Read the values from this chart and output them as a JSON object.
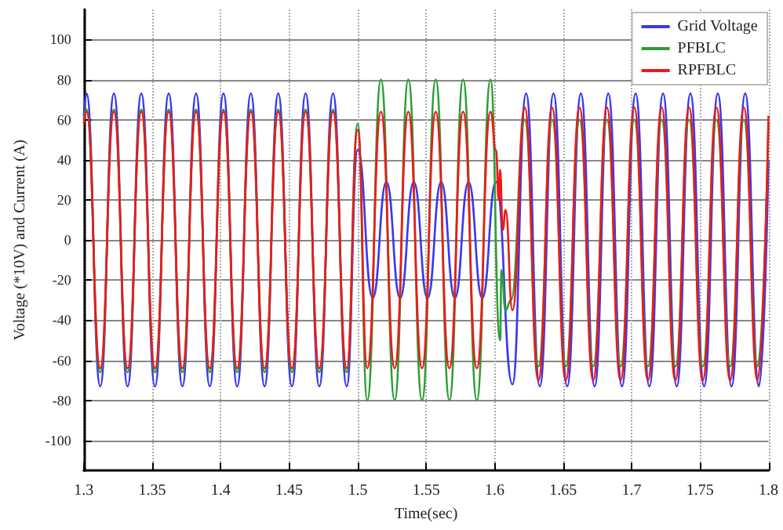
{
  "chart_data": {
    "type": "line",
    "xlabel": "Time(sec)",
    "ylabel": "Voltage (*10V) and Current (A)",
    "xlim": [
      1.3,
      1.8
    ],
    "xticks": [
      1.3,
      1.35,
      1.4,
      1.45,
      1.5,
      1.55,
      1.6,
      1.65,
      1.7,
      1.75,
      1.8
    ],
    "ylim": [
      -115,
      115
    ],
    "yticks": [
      -100,
      -80,
      -60,
      -40,
      -20,
      0,
      20,
      40,
      60,
      80,
      100
    ],
    "grid": true,
    "legend": "top right",
    "marker": "none",
    "line_style": "solid",
    "series": [
      {
        "name": "Grid Voltage",
        "color": "#3838f0",
        "x": [
          1.3,
          1.302,
          1.312,
          1.322,
          1.332,
          1.342,
          1.352,
          1.362,
          1.372,
          1.382,
          1.392,
          1.402,
          1.412,
          1.422,
          1.432,
          1.442,
          1.452,
          1.462,
          1.472,
          1.482,
          1.492,
          1.5,
          1.511,
          1.521,
          1.531,
          1.541,
          1.551,
          1.561,
          1.571,
          1.581,
          1.591,
          1.601,
          1.613,
          1.623,
          1.633,
          1.643,
          1.653,
          1.663,
          1.673,
          1.683,
          1.693,
          1.703,
          1.713,
          1.723,
          1.733,
          1.743,
          1.753,
          1.763,
          1.773,
          1.783,
          1.793,
          1.8
        ],
        "values": [
          62,
          73,
          -73,
          73,
          -73,
          73,
          -73,
          73,
          -73,
          73,
          -73,
          73,
          -73,
          73,
          -73,
          73,
          -73,
          73,
          -73,
          73,
          -73,
          45,
          -29,
          29,
          -29,
          29,
          -29,
          29,
          -29,
          29,
          -29,
          29,
          -72,
          73,
          -73,
          73,
          -73,
          73,
          -73,
          73,
          -73,
          73,
          -73,
          73,
          -73,
          73,
          -73,
          73,
          -73,
          73,
          -73,
          40
        ]
      },
      {
        "name": "PFBLC",
        "color": "#2e9e35",
        "x": [
          1.3,
          1.302,
          1.312,
          1.322,
          1.332,
          1.342,
          1.352,
          1.362,
          1.372,
          1.382,
          1.392,
          1.402,
          1.412,
          1.422,
          1.432,
          1.442,
          1.452,
          1.462,
          1.472,
          1.482,
          1.492,
          1.5,
          1.507,
          1.517,
          1.527,
          1.537,
          1.547,
          1.557,
          1.567,
          1.577,
          1.587,
          1.597,
          1.604,
          1.605,
          1.608,
          1.612,
          1.622,
          1.632,
          1.642,
          1.652,
          1.662,
          1.672,
          1.682,
          1.692,
          1.702,
          1.712,
          1.722,
          1.732,
          1.742,
          1.752,
          1.762,
          1.772,
          1.782,
          1.792,
          1.8
        ],
        "values": [
          60,
          65,
          -66,
          65,
          -66,
          65,
          -66,
          65,
          -66,
          65,
          -66,
          65,
          -66,
          65,
          -66,
          65,
          -66,
          65,
          -66,
          65,
          -66,
          58,
          -80,
          80,
          -80,
          80,
          -80,
          80,
          -80,
          80,
          -80,
          80,
          -50,
          -15,
          -35,
          -30,
          60,
          -63,
          60,
          -63,
          60,
          -63,
          60,
          -63,
          60,
          -63,
          60,
          -63,
          60,
          -63,
          60,
          -63,
          60,
          -63,
          58
        ]
      },
      {
        "name": "RPFBLC",
        "color": "#f01818",
        "x": [
          1.3,
          1.302,
          1.312,
          1.322,
          1.332,
          1.342,
          1.352,
          1.362,
          1.372,
          1.382,
          1.392,
          1.402,
          1.412,
          1.422,
          1.432,
          1.442,
          1.452,
          1.462,
          1.472,
          1.482,
          1.492,
          1.5,
          1.507,
          1.517,
          1.527,
          1.537,
          1.547,
          1.557,
          1.567,
          1.577,
          1.587,
          1.597,
          1.601,
          1.603,
          1.604,
          1.606,
          1.608,
          1.613,
          1.622,
          1.632,
          1.642,
          1.652,
          1.662,
          1.672,
          1.682,
          1.692,
          1.702,
          1.712,
          1.722,
          1.732,
          1.742,
          1.752,
          1.762,
          1.772,
          1.782,
          1.792,
          1.8
        ],
        "values": [
          58,
          64,
          -64,
          64,
          -64,
          64,
          -64,
          64,
          -64,
          64,
          -64,
          64,
          -64,
          64,
          -64,
          64,
          -64,
          64,
          -64,
          64,
          -64,
          55,
          -64,
          64,
          -64,
          64,
          -64,
          64,
          -64,
          64,
          -64,
          64,
          45,
          20,
          35,
          5,
          15,
          -35,
          66,
          -70,
          66,
          -70,
          66,
          -70,
          66,
          -70,
          66,
          -70,
          66,
          -70,
          66,
          -70,
          66,
          -70,
          66,
          -70,
          62
        ]
      }
    ]
  }
}
